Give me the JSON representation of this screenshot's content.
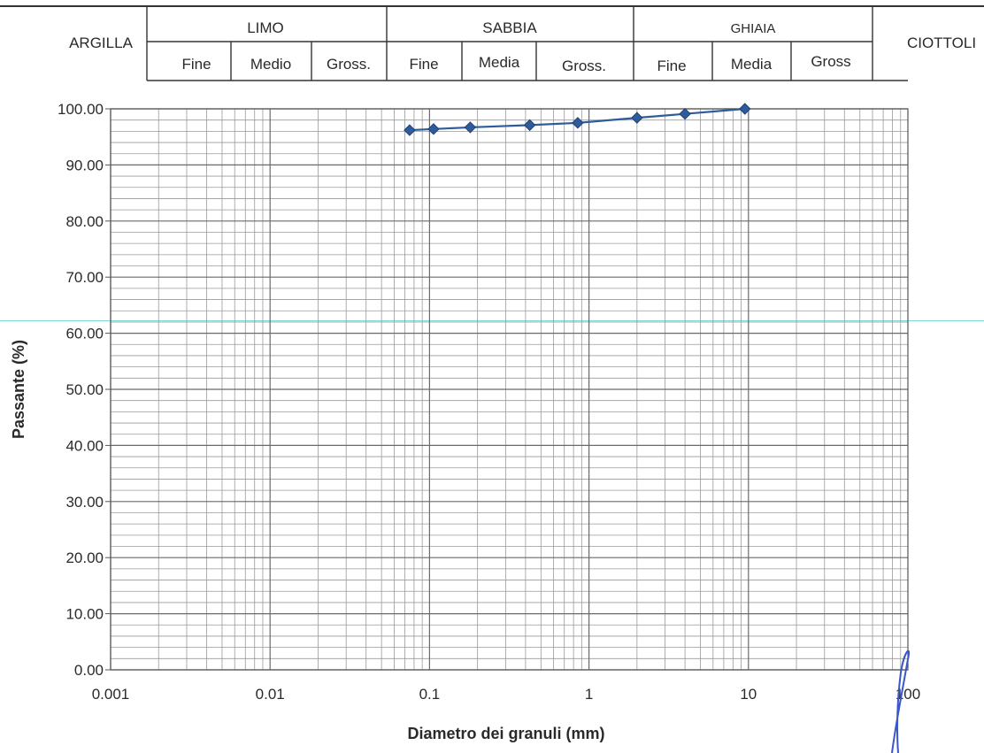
{
  "classification": {
    "argilla": "ARGILLA",
    "limo": {
      "label": "LIMO",
      "subs": [
        "Fine",
        "Medio",
        "Gross."
      ]
    },
    "sabbia": {
      "label": "SABBIA",
      "subs": [
        "Fine",
        "Media",
        "Gross."
      ]
    },
    "ghiaia": {
      "label": "GHIAIA",
      "subs": [
        "Fine",
        "Media",
        "Gross"
      ]
    },
    "ciottoli": "CIOTTOLI"
  },
  "chart_data": {
    "type": "line",
    "xscale": "log",
    "xlim": [
      0.001,
      100
    ],
    "ylim": [
      0,
      100
    ],
    "grid": true,
    "xlabel": "Diametro dei granuli (mm)",
    "ylabel": "Passante (%)",
    "x_ticks": [
      "0.001",
      "0.01",
      "0.1",
      "1",
      "10",
      "100"
    ],
    "y_ticks": [
      "0.00",
      "10.00",
      "20.00",
      "30.00",
      "40.00",
      "50.00",
      "60.00",
      "70.00",
      "80.00",
      "90.00",
      "100.00"
    ],
    "series": [
      {
        "x": [
          0.075,
          0.106,
          0.18,
          0.425,
          0.85,
          2,
          4,
          9.5
        ],
        "y": [
          96.2,
          96.4,
          96.7,
          97.1,
          97.5,
          98.4,
          99.1,
          100
        ],
        "color": "#2f5d9c"
      }
    ]
  }
}
